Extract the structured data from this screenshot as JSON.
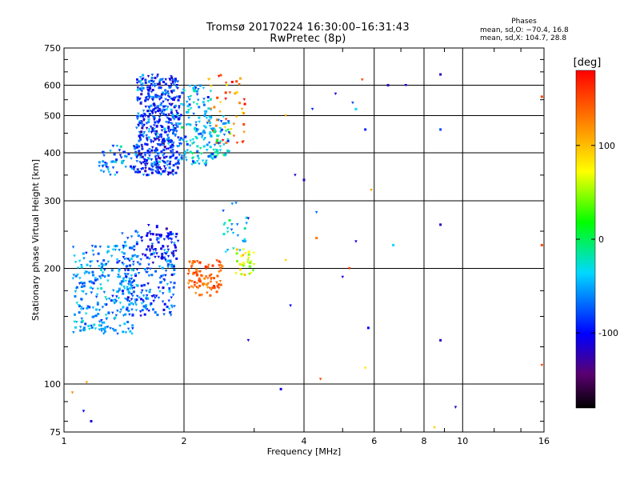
{
  "title": "Tromsø 20170224 16:30:00–16:31:43",
  "subtitle": "RwPretec (8p)",
  "phase_info": {
    "heading": "Phases",
    "o_mode": "mean, sd,O: −70.4, 16.8",
    "x_mode": "mean, sd,X: 104.7, 28.8"
  },
  "colorbar": {
    "label": "[deg]",
    "ticks": [
      "100",
      "0",
      "-100"
    ],
    "range": [
      -180,
      180
    ],
    "tick_values": [
      100,
      0,
      -100
    ]
  },
  "chart_data": {
    "type": "scatter",
    "title": "Tromsø 20170224 16:30:00–16:31:43",
    "subtitle": "RwPretec (8p)",
    "xlabel": "Frequency [MHz]",
    "ylabel": "Stationary phase Virtual Height [km]",
    "x_scale": "log",
    "y_scale": "log",
    "xlim": [
      1,
      16
    ],
    "ylim": [
      75,
      750
    ],
    "x_ticks": [
      1,
      2,
      4,
      6,
      8,
      10,
      16
    ],
    "x_tick_labels": [
      "1",
      "2",
      "4",
      "6",
      "8",
      "10",
      "16"
    ],
    "y_ticks": [
      75,
      100,
      200,
      300,
      400,
      500,
      600,
      750
    ],
    "y_tick_labels": [
      "75",
      "100",
      "200",
      "300",
      "400",
      "500",
      "600",
      "750"
    ],
    "grid": true,
    "color_by": "phase [deg]",
    "clusters": [
      {
        "x_range": [
          1.52,
          1.95
        ],
        "y_range": [
          350,
          640
        ],
        "phase": -85,
        "spread": 22,
        "n": 520
      },
      {
        "x_range": [
          1.22,
          1.55
        ],
        "y_range": [
          350,
          420
        ],
        "phase": -70,
        "spread": 20,
        "n": 60
      },
      {
        "x_range": [
          1.95,
          2.35
        ],
        "y_range": [
          370,
          600
        ],
        "phase": -50,
        "spread": 22,
        "n": 140
      },
      {
        "x_range": [
          2.3,
          2.85
        ],
        "y_range": [
          420,
          640
        ],
        "phase": 130,
        "spread": 30,
        "n": 50
      },
      {
        "x_range": [
          2.3,
          2.6
        ],
        "y_range": [
          380,
          500
        ],
        "phase": -40,
        "spread": 25,
        "n": 60
      },
      {
        "x_range": [
          1.05,
          1.5
        ],
        "y_range": [
          135,
          230
        ],
        "phase": -60,
        "spread": 18,
        "n": 260
      },
      {
        "x_range": [
          1.4,
          1.9
        ],
        "y_range": [
          150,
          250
        ],
        "phase": -75,
        "spread": 20,
        "n": 200
      },
      {
        "x_range": [
          1.6,
          1.95
        ],
        "y_range": [
          210,
          260
        ],
        "phase": -100,
        "spread": 12,
        "n": 60
      },
      {
        "x_range": [
          2.05,
          2.5
        ],
        "y_range": [
          170,
          210
        ],
        "phase": 140,
        "spread": 12,
        "n": 90
      },
      {
        "x_range": [
          2.7,
          3.0
        ],
        "y_range": [
          190,
          225
        ],
        "phase": 60,
        "spread": 25,
        "n": 30
      },
      {
        "x_range": [
          2.5,
          2.9
        ],
        "y_range": [
          220,
          300
        ],
        "phase": -40,
        "spread": 20,
        "n": 25
      }
    ],
    "outliers": [
      {
        "x": 1.05,
        "y": 95,
        "phase": 120
      },
      {
        "x": 1.12,
        "y": 85,
        "phase": -100
      },
      {
        "x": 1.17,
        "y": 80,
        "phase": -110
      },
      {
        "x": 1.14,
        "y": 101,
        "phase": 110
      },
      {
        "x": 2.9,
        "y": 130,
        "phase": -110
      },
      {
        "x": 2.9,
        "y": 270,
        "phase": -120
      },
      {
        "x": 3.5,
        "y": 97,
        "phase": -110
      },
      {
        "x": 3.6,
        "y": 210,
        "phase": 90
      },
      {
        "x": 3.6,
        "y": 500,
        "phase": 100
      },
      {
        "x": 3.7,
        "y": 160,
        "phase": -100
      },
      {
        "x": 3.8,
        "y": 350,
        "phase": -120
      },
      {
        "x": 4.0,
        "y": 340,
        "phase": -120
      },
      {
        "x": 4.2,
        "y": 520,
        "phase": -90
      },
      {
        "x": 4.3,
        "y": 280,
        "phase": -70
      },
      {
        "x": 4.3,
        "y": 240,
        "phase": 130
      },
      {
        "x": 4.4,
        "y": 103,
        "phase": 150
      },
      {
        "x": 4.8,
        "y": 570,
        "phase": -110
      },
      {
        "x": 5.0,
        "y": 190,
        "phase": -110
      },
      {
        "x": 5.2,
        "y": 200,
        "phase": 150
      },
      {
        "x": 5.3,
        "y": 540,
        "phase": -80
      },
      {
        "x": 5.4,
        "y": 235,
        "phase": -110
      },
      {
        "x": 5.4,
        "y": 520,
        "phase": -40
      },
      {
        "x": 5.6,
        "y": 620,
        "phase": 150
      },
      {
        "x": 5.7,
        "y": 110,
        "phase": 80
      },
      {
        "x": 5.7,
        "y": 460,
        "phase": -90
      },
      {
        "x": 5.8,
        "y": 140,
        "phase": -100
      },
      {
        "x": 5.9,
        "y": 320,
        "phase": 110
      },
      {
        "x": 6.5,
        "y": 600,
        "phase": -120
      },
      {
        "x": 6.7,
        "y": 230,
        "phase": -40
      },
      {
        "x": 7.2,
        "y": 600,
        "phase": -110
      },
      {
        "x": 8.5,
        "y": 77,
        "phase": 90
      },
      {
        "x": 8.8,
        "y": 640,
        "phase": -120
      },
      {
        "x": 8.8,
        "y": 460,
        "phase": -80
      },
      {
        "x": 8.8,
        "y": 260,
        "phase": -120
      },
      {
        "x": 8.8,
        "y": 130,
        "phase": -120
      },
      {
        "x": 9.6,
        "y": 87,
        "phase": -120
      },
      {
        "x": 15.8,
        "y": 560,
        "phase": 150
      },
      {
        "x": 15.8,
        "y": 230,
        "phase": 150
      },
      {
        "x": 15.8,
        "y": 112,
        "phase": 150
      }
    ]
  }
}
